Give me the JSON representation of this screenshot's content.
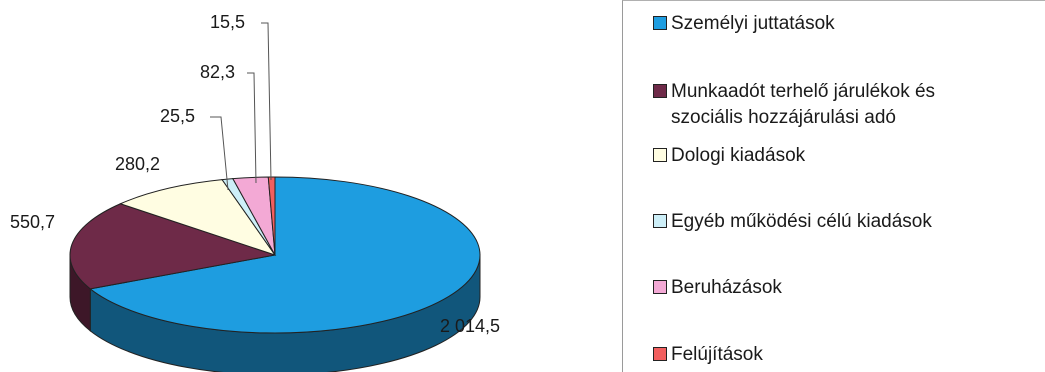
{
  "chart_data": {
    "type": "pie",
    "style": "3d",
    "categories": [
      "Személyi juttatások",
      "Munkaadót terhelő járulékok és szociális hozzájárulási adó",
      "Dologi kiadások",
      "Egyéb működési célú kiadások",
      "Beruházások",
      "Felújítások"
    ],
    "values": [
      2014.5,
      550.7,
      280.2,
      25.5,
      82.3,
      15.5
    ],
    "value_labels": [
      "2 014,5",
      "550,7",
      "280,2",
      "25,5",
      "82,3",
      "15,5"
    ],
    "colors": [
      "#1e9de0",
      "#6e2a48",
      "#fffde2",
      "#cdeff8",
      "#f3a9d5",
      "#f25f5f"
    ],
    "legend_position": "right"
  },
  "legend": {
    "items": [
      {
        "lines": [
          "Személyi juttatások"
        ],
        "color": "#1e9de0"
      },
      {
        "lines": [
          "Munkaadót terhelő járulékok és",
          "szociális hozzájárulási adó"
        ],
        "color": "#6e2a48"
      },
      {
        "lines": [
          "Dologi kiadások"
        ],
        "color": "#fffde2"
      },
      {
        "lines": [
          "Egyéb működési célú kiadások"
        ],
        "color": "#cdeff8"
      },
      {
        "lines": [
          "Beruházások"
        ],
        "color": "#f3a9d5"
      },
      {
        "lines": [
          "Felújítások"
        ],
        "color": "#f25f5f"
      }
    ]
  }
}
